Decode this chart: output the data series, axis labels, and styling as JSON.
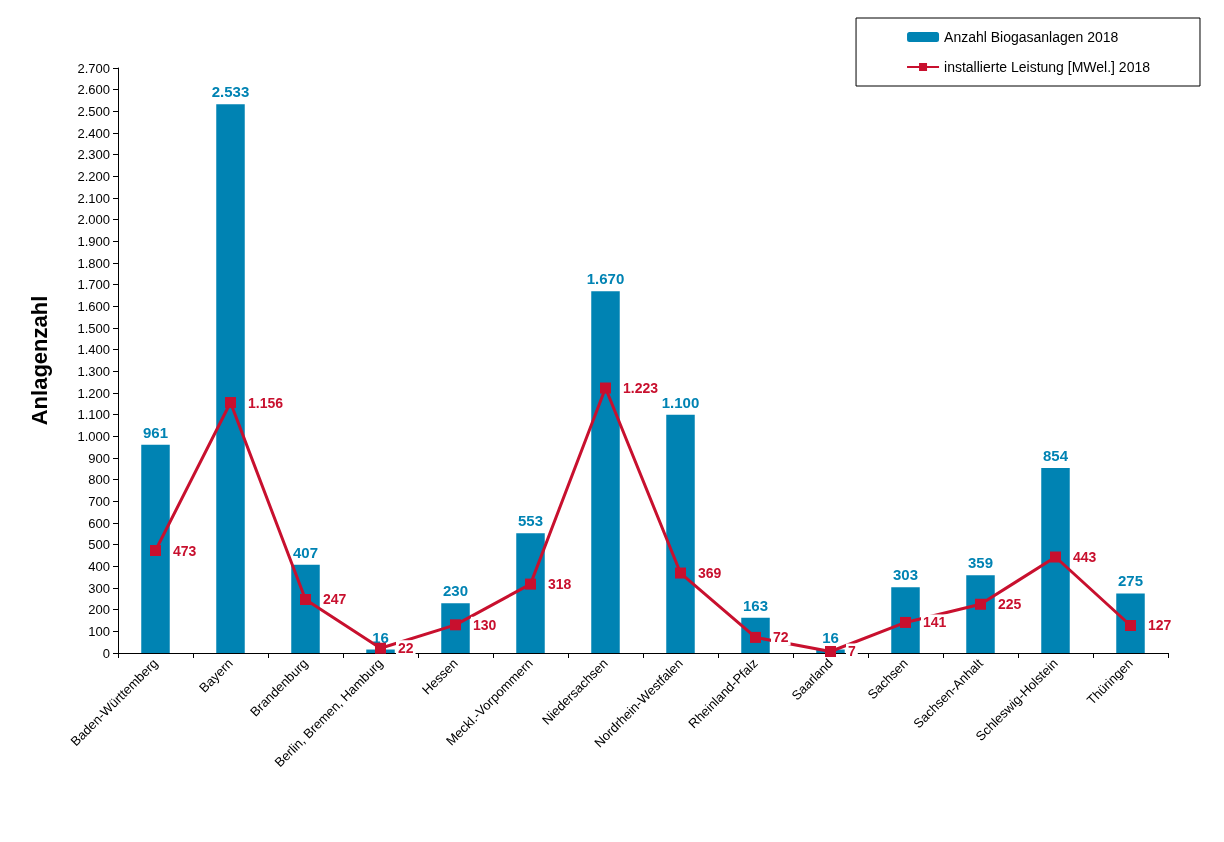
{
  "chart_data": {
    "type": "bar",
    "ylabel": "Anlagenzahl",
    "categories": [
      "Baden-Württemberg",
      "Bayern",
      "Brandenburg",
      "Berlin, Bremen, Hamburg",
      "Hessen",
      "Meckl.-Vorpommern",
      "Niedersachsen",
      "Nordrhein-Westfalen",
      "Rheinland-Pfalz",
      "Saarland",
      "Sachsen",
      "Sachsen-Anhalt",
      "Schleswig-Holstein",
      "Thüringen"
    ],
    "series": [
      {
        "name": "Anzahl Biogasanlagen 2018",
        "color": "#0083b3",
        "values": [
          961,
          2533,
          407,
          16,
          230,
          553,
          1670,
          1100,
          163,
          16,
          303,
          359,
          854,
          275
        ],
        "value_labels": [
          "961",
          "2.533",
          "407",
          "16",
          "230",
          "553",
          "1.670",
          "1.100",
          "163",
          "16",
          "303",
          "359",
          "854",
          "275"
        ]
      },
      {
        "name": "installierte Leistung [MWel.] 2018",
        "type": "line",
        "color": "#c8102e",
        "values": [
          473,
          1156,
          247,
          22,
          130,
          318,
          1223,
          369,
          72,
          7,
          141,
          225,
          443,
          127
        ],
        "value_labels": [
          "473",
          "1.156",
          "247",
          "22",
          "130",
          "318",
          "1.223",
          "369",
          "72",
          "7",
          "141",
          "225",
          "443",
          "127"
        ]
      }
    ],
    "ylim": [
      0,
      2700
    ],
    "yticks": [
      0,
      100,
      200,
      300,
      400,
      500,
      600,
      700,
      800,
      900,
      {
        "value": 1000,
        "label": "1.000"
      },
      {
        "value": 1100,
        "label": "1.100"
      },
      {
        "value": 1200,
        "label": "1.200"
      },
      {
        "value": 1300,
        "label": "1.300"
      },
      {
        "value": 1400,
        "label": "1.400"
      },
      {
        "value": 1500,
        "label": "1.500"
      },
      {
        "value": 1600,
        "label": "1.600"
      },
      {
        "value": 1700,
        "label": "1.700"
      },
      {
        "value": 1800,
        "label": "1.800"
      },
      {
        "value": 1900,
        "label": "1.900"
      },
      {
        "value": 2000,
        "label": "2.000"
      },
      {
        "value": 2100,
        "label": "2.100"
      },
      {
        "value": 2200,
        "label": "2.200"
      },
      {
        "value": 2300,
        "label": "2.300"
      },
      {
        "value": 2400,
        "label": "2.400"
      },
      {
        "value": 2500,
        "label": "2.500"
      },
      {
        "value": 2600,
        "label": "2.600"
      },
      {
        "value": 2700,
        "label": "2.700"
      }
    ],
    "grid": false,
    "legend": "top right",
    "marker": "square",
    "line_style": "solid"
  }
}
